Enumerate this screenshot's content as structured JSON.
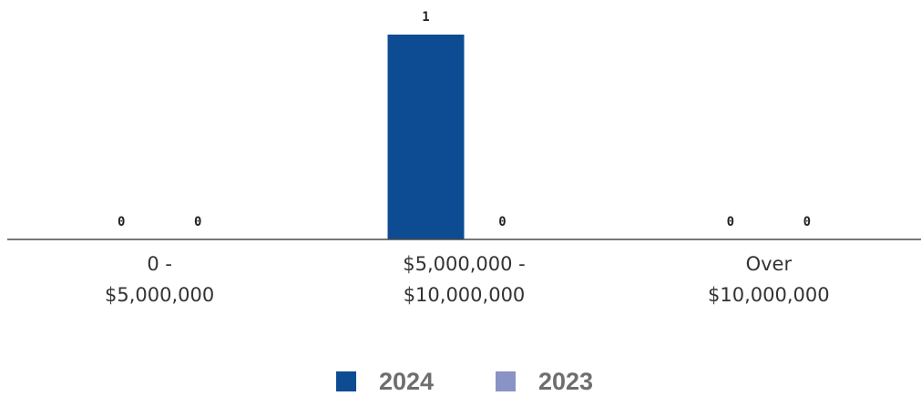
{
  "chart_data": {
    "type": "bar",
    "title": "",
    "xlabel": "",
    "ylabel": "",
    "categories": [
      [
        "0 -",
        "$5,000,000"
      ],
      [
        "$5,000,000 -",
        "$10,000,000"
      ],
      [
        "Over",
        "$10,000,000"
      ]
    ],
    "series": [
      {
        "name": "2024",
        "values": [
          0,
          1,
          0
        ],
        "color": "#0d4c92"
      },
      {
        "name": "2023",
        "values": [
          0,
          0,
          0
        ],
        "color": "#8a93c6"
      }
    ],
    "ylim": [
      0,
      1
    ],
    "grid": false,
    "legend": "bottom-center"
  }
}
